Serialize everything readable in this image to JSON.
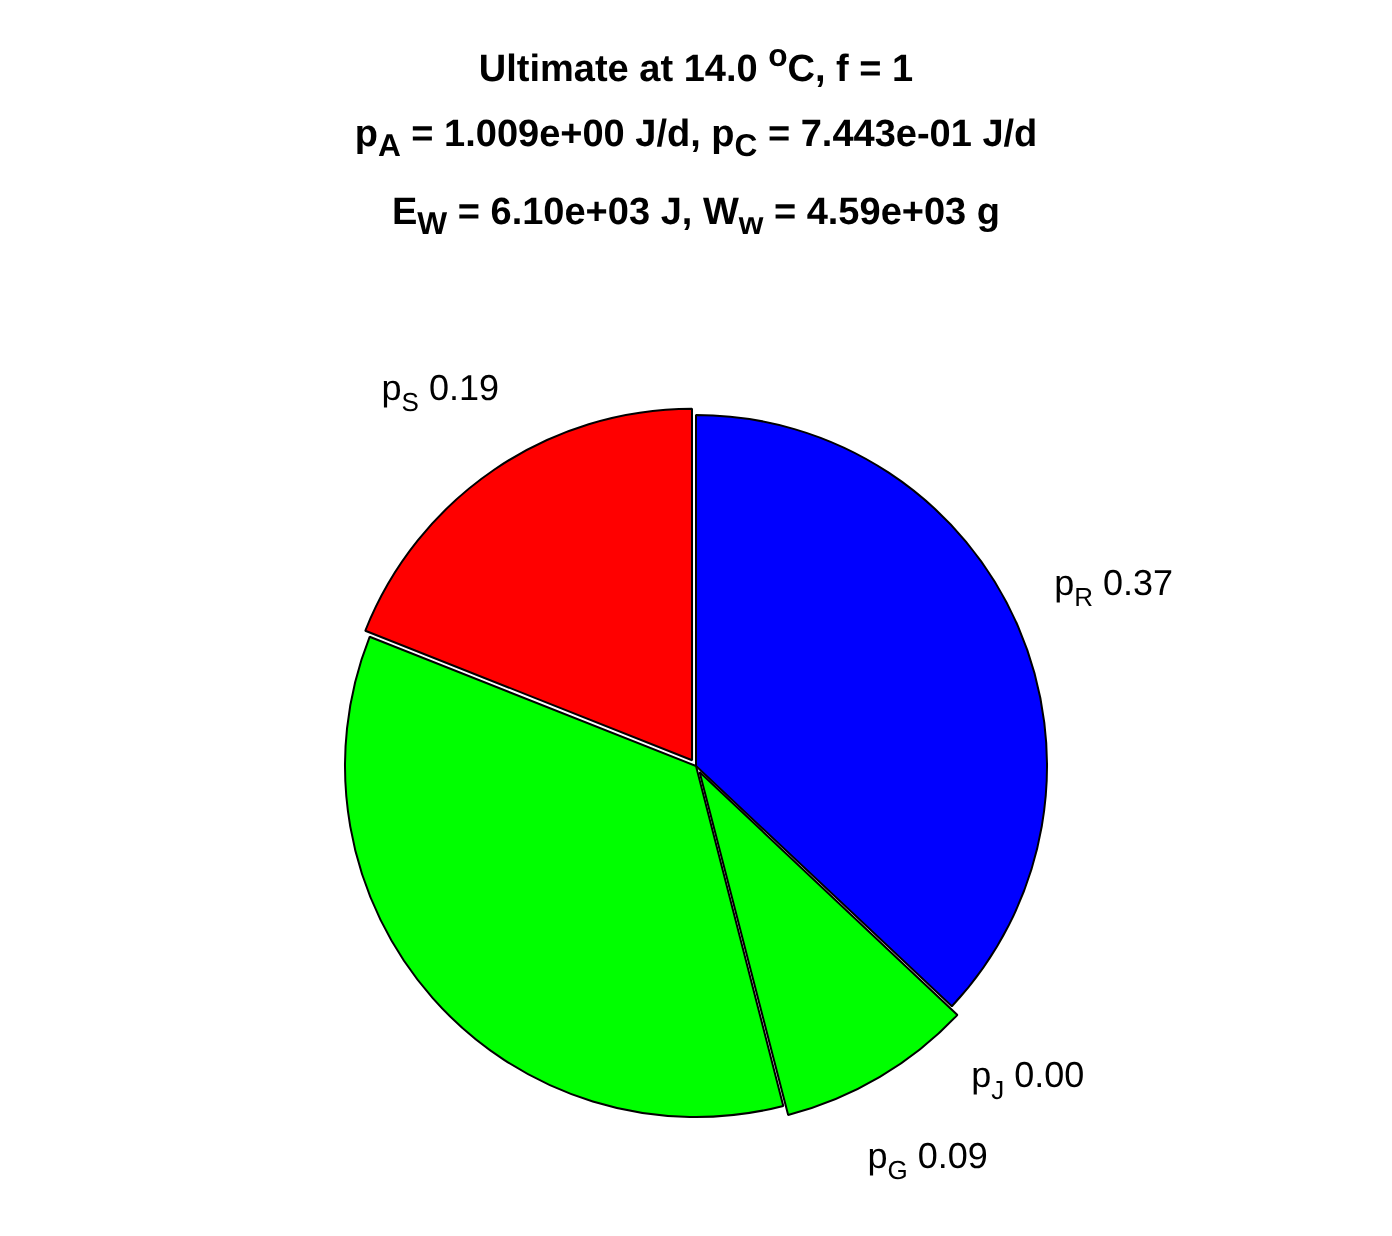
{
  "chart_data": {
    "type": "pie",
    "title": "Ultimate at 14.0 $^{o}$C, f = 1",
    "subtitle": "p$_{A}$ = 1.009e+00 J/d, p$_{C}$ = 7.443e-01 J/d\nE$_{W}$ = 6.10e+03 J, W$_{w}$ = 4.59e+03 g",
    "categories": [
      "p$_{R}$",
      "p$_{J}$",
      "p$_{G}$",
      null,
      "p$_{S}$"
    ],
    "values": [
      0.37,
      0.0,
      0.09,
      0.35,
      0.19
    ],
    "value_labels": [
      "0.37",
      "0.00",
      "0.09",
      null,
      "0.19"
    ],
    "colors": [
      "#0000ff",
      "#00ff00",
      "#00ff00",
      "#00ff00",
      "#ff0000"
    ],
    "legend": false
  }
}
